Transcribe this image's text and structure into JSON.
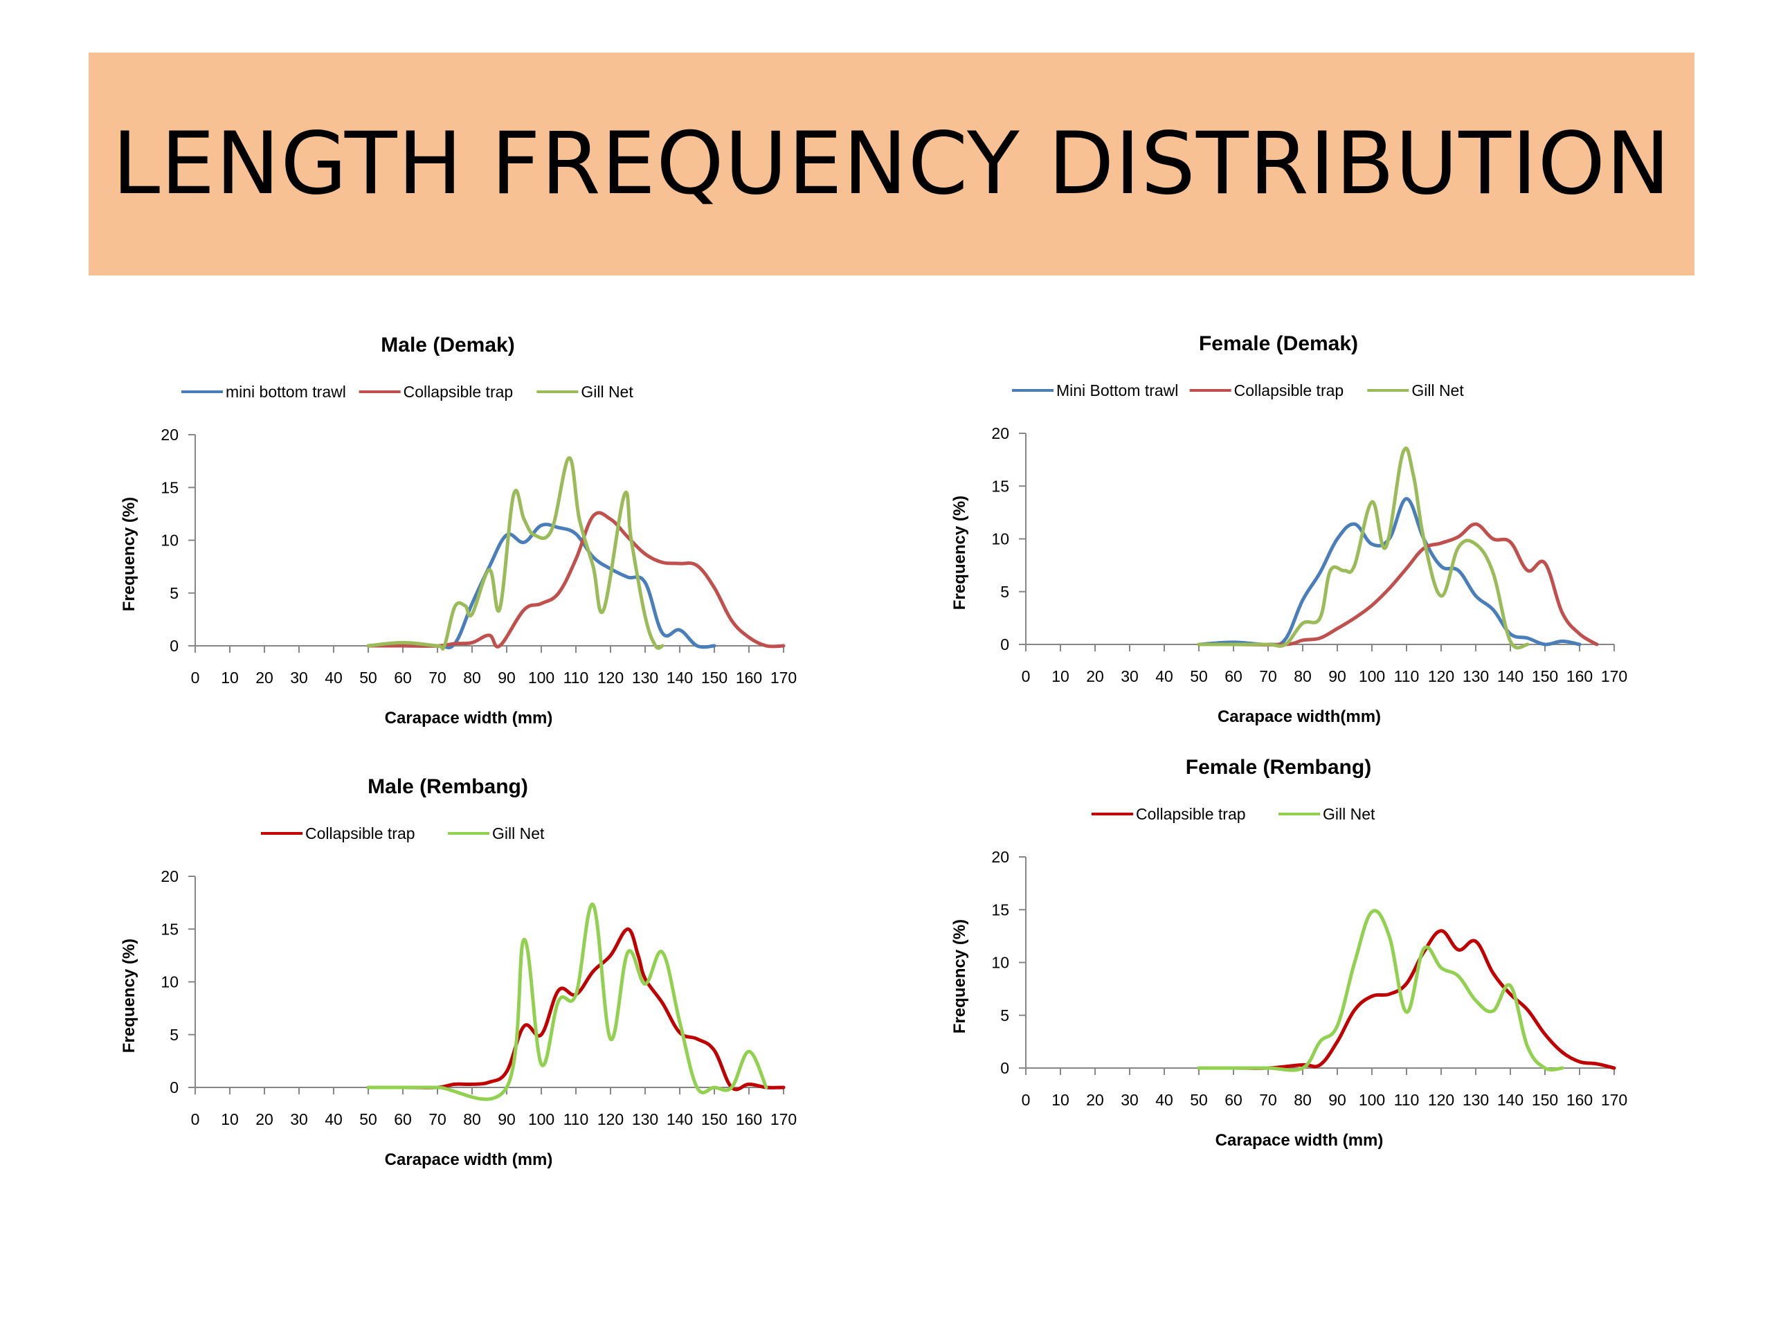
{
  "page": {
    "title": "LENGTH FREQUENCY DISTRIBUTION",
    "colors": {
      "banner": "#f8c194",
      "blue": "#4a7ebb",
      "red_light": "#c0504d",
      "green": "#9bbb59",
      "red_dark": "#c00000",
      "green_bright": "#92d050"
    }
  },
  "chart_data": [
    {
      "type": "line",
      "title": "Male (Demak)",
      "xlabel": "Carapace width (mm)",
      "ylabel": "Frequency (%)",
      "xlim": [
        0,
        170
      ],
      "ylim": [
        0,
        20
      ],
      "xticks": [
        "0",
        "10",
        "20",
        "30",
        "40",
        "50",
        "60",
        "70",
        "80",
        "90",
        "100",
        "110",
        "120",
        "130",
        "140",
        "150",
        "160",
        "170"
      ],
      "yticks": [
        "0",
        "5",
        "10",
        "15",
        "20"
      ],
      "legend_position": "top",
      "series": [
        {
          "name": "mini bottom trawl",
          "color": "#4a7ebb",
          "points": [
            [
              50,
              0
            ],
            [
              60,
              0
            ],
            [
              70,
              0
            ],
            [
              75,
              0.2
            ],
            [
              80,
              4
            ],
            [
              85,
              7.5
            ],
            [
              90,
              10.5
            ],
            [
              95,
              9.8
            ],
            [
              100,
              11.4
            ],
            [
              105,
              11.2
            ],
            [
              110,
              10.6
            ],
            [
              115,
              8.4
            ],
            [
              120,
              7.3
            ],
            [
              125,
              6.5
            ],
            [
              130,
              6
            ],
            [
              135,
              1.2
            ],
            [
              140,
              1.5
            ],
            [
              145,
              0
            ],
            [
              150,
              0
            ]
          ]
        },
        {
          "name": "Collapsible trap",
          "color": "#c0504d",
          "points": [
            [
              50,
              0
            ],
            [
              60,
              0
            ],
            [
              70,
              0
            ],
            [
              75,
              0.2
            ],
            [
              80,
              0.3
            ],
            [
              85,
              1
            ],
            [
              88,
              0
            ],
            [
              95,
              3.4
            ],
            [
              100,
              4
            ],
            [
              105,
              5
            ],
            [
              110,
              8.2
            ],
            [
              115,
              12.3
            ],
            [
              120,
              12
            ],
            [
              125,
              10.3
            ],
            [
              130,
              8.7
            ],
            [
              135,
              7.9
            ],
            [
              140,
              7.8
            ],
            [
              145,
              7.6
            ],
            [
              150,
              5.5
            ],
            [
              155,
              2.4
            ],
            [
              160,
              0.8
            ],
            [
              165,
              0
            ],
            [
              170,
              0
            ]
          ]
        },
        {
          "name": "Gill Net",
          "color": "#9bbb59",
          "points": [
            [
              50,
              0
            ],
            [
              60,
              0.3
            ],
            [
              70,
              0
            ],
            [
              72,
              0
            ],
            [
              75,
              3.7
            ],
            [
              78,
              3.8
            ],
            [
              80,
              3
            ],
            [
              85,
              7.2
            ],
            [
              88,
              3.5
            ],
            [
              92,
              14.3
            ],
            [
              95,
              12
            ],
            [
              98,
              10.5
            ],
            [
              103,
              11
            ],
            [
              108,
              17.8
            ],
            [
              111,
              12
            ],
            [
              115,
              7.5
            ],
            [
              118,
              3.4
            ],
            [
              124,
              14.3
            ],
            [
              126,
              10
            ],
            [
              130,
              2.8
            ],
            [
              133,
              0
            ],
            [
              135,
              0
            ]
          ]
        }
      ]
    },
    {
      "type": "line",
      "title": "Female (Demak)",
      "xlabel": "Carapace width(mm)",
      "ylabel": "Frequency (%)",
      "xlim": [
        0,
        170
      ],
      "ylim": [
        0,
        20
      ],
      "xticks": [
        "0",
        "10",
        "20",
        "30",
        "40",
        "50",
        "60",
        "70",
        "80",
        "90",
        "100",
        "110",
        "120",
        "130",
        "140",
        "150",
        "160",
        "170"
      ],
      "yticks": [
        "0",
        "5",
        "10",
        "15",
        "20"
      ],
      "legend_position": "top",
      "series": [
        {
          "name": "Mini Bottom trawl",
          "color": "#4a7ebb",
          "points": [
            [
              50,
              0
            ],
            [
              60,
              0.2
            ],
            [
              70,
              0
            ],
            [
              75,
              0.5
            ],
            [
              80,
              4.2
            ],
            [
              85,
              6.8
            ],
            [
              90,
              10
            ],
            [
              95,
              11.4
            ],
            [
              100,
              9.5
            ],
            [
              105,
              10
            ],
            [
              110,
              13.8
            ],
            [
              115,
              10
            ],
            [
              120,
              7.4
            ],
            [
              125,
              7
            ],
            [
              130,
              4.6
            ],
            [
              135,
              3.3
            ],
            [
              140,
              1
            ],
            [
              145,
              0.6
            ],
            [
              150,
              0
            ],
            [
              155,
              0.3
            ],
            [
              160,
              0
            ]
          ]
        },
        {
          "name": "Collapsible trap",
          "color": "#c0504d",
          "points": [
            [
              50,
              0
            ],
            [
              60,
              0
            ],
            [
              75,
              0
            ],
            [
              80,
              0.4
            ],
            [
              85,
              0.6
            ],
            [
              90,
              1.5
            ],
            [
              95,
              2.5
            ],
            [
              100,
              3.7
            ],
            [
              105,
              5.3
            ],
            [
              110,
              7.2
            ],
            [
              115,
              9.1
            ],
            [
              120,
              9.6
            ],
            [
              125,
              10.2
            ],
            [
              130,
              11.4
            ],
            [
              135,
              10
            ],
            [
              140,
              9.7
            ],
            [
              145,
              7
            ],
            [
              150,
              7.7
            ],
            [
              155,
              3
            ],
            [
              160,
              1
            ],
            [
              165,
              0
            ]
          ]
        },
        {
          "name": "Gill Net",
          "color": "#9bbb59",
          "points": [
            [
              50,
              0
            ],
            [
              60,
              0
            ],
            [
              70,
              0
            ],
            [
              75,
              0
            ],
            [
              80,
              2
            ],
            [
              85,
              2.5
            ],
            [
              88,
              7
            ],
            [
              92,
              7
            ],
            [
              95,
              7.5
            ],
            [
              100,
              13.5
            ],
            [
              104,
              9.2
            ],
            [
              109,
              18.2
            ],
            [
              112,
              16
            ],
            [
              115,
              10
            ],
            [
              120,
              4.6
            ],
            [
              125,
              9.2
            ],
            [
              130,
              9.5
            ],
            [
              135,
              6.8
            ],
            [
              140,
              0.3
            ],
            [
              145,
              0
            ]
          ]
        }
      ]
    },
    {
      "type": "line",
      "title": "Male (Rembang)",
      "xlabel": "Carapace width (mm)",
      "ylabel": "Frequency (%)",
      "xlim": [
        0,
        170
      ],
      "ylim": [
        0,
        20
      ],
      "xticks": [
        "0",
        "10",
        "20",
        "30",
        "40",
        "50",
        "60",
        "70",
        "80",
        "90",
        "100",
        "110",
        "120",
        "130",
        "140",
        "150",
        "160",
        "170"
      ],
      "yticks": [
        "0",
        "5",
        "10",
        "15",
        "20"
      ],
      "legend_position": "top",
      "series": [
        {
          "name": "Collapsible trap",
          "color": "#c00000",
          "points": [
            [
              50,
              0
            ],
            [
              60,
              0
            ],
            [
              70,
              0
            ],
            [
              75,
              0.3
            ],
            [
              80,
              0.3
            ],
            [
              85,
              0.5
            ],
            [
              90,
              1.5
            ],
            [
              95,
              5.8
            ],
            [
              100,
              5
            ],
            [
              105,
              9.2
            ],
            [
              110,
              8.8
            ],
            [
              115,
              11
            ],
            [
              120,
              12.5
            ],
            [
              125,
              15
            ],
            [
              128,
              12.5
            ],
            [
              130,
              10.3
            ],
            [
              135,
              8
            ],
            [
              140,
              5.2
            ],
            [
              145,
              4.6
            ],
            [
              150,
              3.5
            ],
            [
              155,
              0
            ],
            [
              160,
              0.3
            ],
            [
              165,
              0
            ],
            [
              170,
              0
            ]
          ]
        },
        {
          "name": "Gill Net",
          "color": "#92d050",
          "points": [
            [
              50,
              0
            ],
            [
              60,
              0
            ],
            [
              70,
              0
            ],
            [
              90,
              0
            ],
            [
              95,
              14
            ],
            [
              100,
              2.2
            ],
            [
              105,
              8.2
            ],
            [
              110,
              8.8
            ],
            [
              115,
              17.3
            ],
            [
              120,
              4.6
            ],
            [
              125,
              12.8
            ],
            [
              130,
              9.8
            ],
            [
              135,
              12.8
            ],
            [
              140,
              6.2
            ],
            [
              145,
              0
            ],
            [
              150,
              0
            ],
            [
              155,
              0
            ],
            [
              160,
              3.4
            ],
            [
              165,
              0
            ]
          ]
        }
      ]
    },
    {
      "type": "line",
      "title": "Female (Rembang)",
      "xlabel": "Carapace width (mm)",
      "ylabel": "Frequency (%)",
      "xlim": [
        0,
        170
      ],
      "ylim": [
        0,
        20
      ],
      "xticks": [
        "0",
        "10",
        "20",
        "30",
        "40",
        "50",
        "60",
        "70",
        "80",
        "90",
        "100",
        "110",
        "120",
        "130",
        "140",
        "150",
        "160",
        "170"
      ],
      "yticks": [
        "0",
        "5",
        "10",
        "15",
        "20"
      ],
      "legend_position": "top",
      "series": [
        {
          "name": "Collapsible trap",
          "color": "#c00000",
          "points": [
            [
              50,
              0
            ],
            [
              60,
              0
            ],
            [
              70,
              0
            ],
            [
              80,
              0.3
            ],
            [
              85,
              0.3
            ],
            [
              90,
              2.5
            ],
            [
              95,
              5.5
            ],
            [
              100,
              6.8
            ],
            [
              105,
              7
            ],
            [
              110,
              8
            ],
            [
              115,
              11
            ],
            [
              120,
              13
            ],
            [
              125,
              11.2
            ],
            [
              130,
              12
            ],
            [
              135,
              9
            ],
            [
              140,
              7
            ],
            [
              145,
              5.5
            ],
            [
              150,
              3.2
            ],
            [
              155,
              1.5
            ],
            [
              160,
              0.6
            ],
            [
              165,
              0.4
            ],
            [
              170,
              0
            ]
          ]
        },
        {
          "name": "Gill Net",
          "color": "#92d050",
          "points": [
            [
              50,
              0
            ],
            [
              60,
              0
            ],
            [
              70,
              0
            ],
            [
              80,
              0
            ],
            [
              85,
              2.5
            ],
            [
              90,
              4
            ],
            [
              95,
              10
            ],
            [
              100,
              14.8
            ],
            [
              105,
              12.5
            ],
            [
              110,
              5.3
            ],
            [
              115,
              11.3
            ],
            [
              120,
              9.5
            ],
            [
              125,
              8.7
            ],
            [
              130,
              6.4
            ],
            [
              135,
              5.4
            ],
            [
              140,
              7.8
            ],
            [
              145,
              2
            ],
            [
              150,
              0
            ],
            [
              155,
              0
            ]
          ]
        }
      ]
    }
  ]
}
